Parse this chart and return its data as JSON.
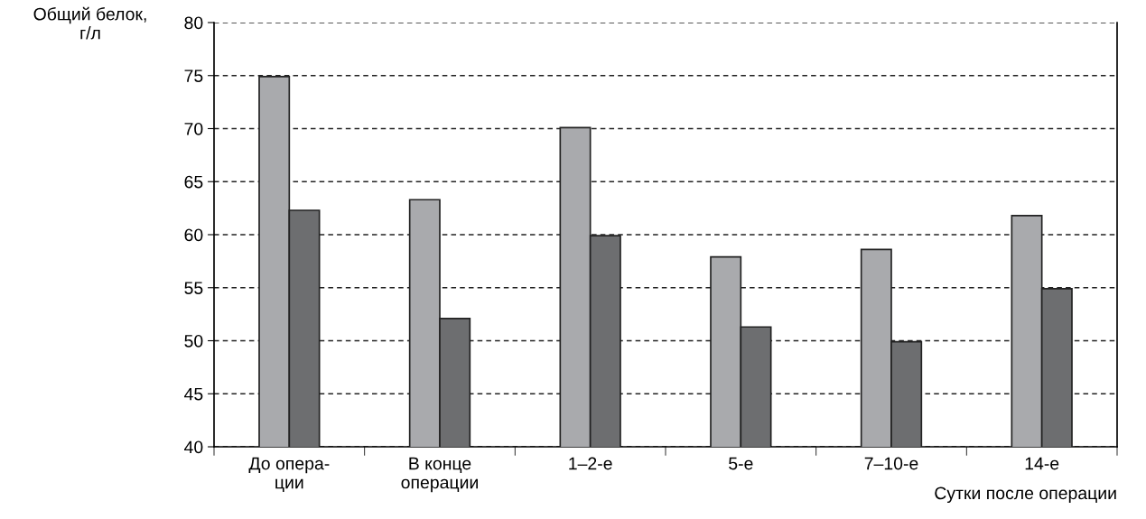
{
  "chart_data": {
    "type": "bar",
    "xlabel": "Сутки после операции",
    "ylabel": "Общий белок,\nг/л",
    "categories": [
      "До опера-\nции",
      "В конце\nоперации",
      "1–2-е",
      "5-е",
      "7–10-е",
      "14-е"
    ],
    "series": [
      {
        "color": "#a9aaad",
        "values": [
          74.9,
          63.3,
          70.1,
          57.9,
          58.6,
          61.8
        ]
      },
      {
        "color": "#6d6e70",
        "values": [
          62.3,
          52.1,
          59.9,
          51.3,
          49.9,
          54.9
        ]
      }
    ],
    "ylim": [
      40,
      80
    ],
    "yticks": [
      40,
      45,
      50,
      55,
      60,
      65,
      70,
      75,
      80
    ],
    "grid": "y",
    "legend": false
  }
}
